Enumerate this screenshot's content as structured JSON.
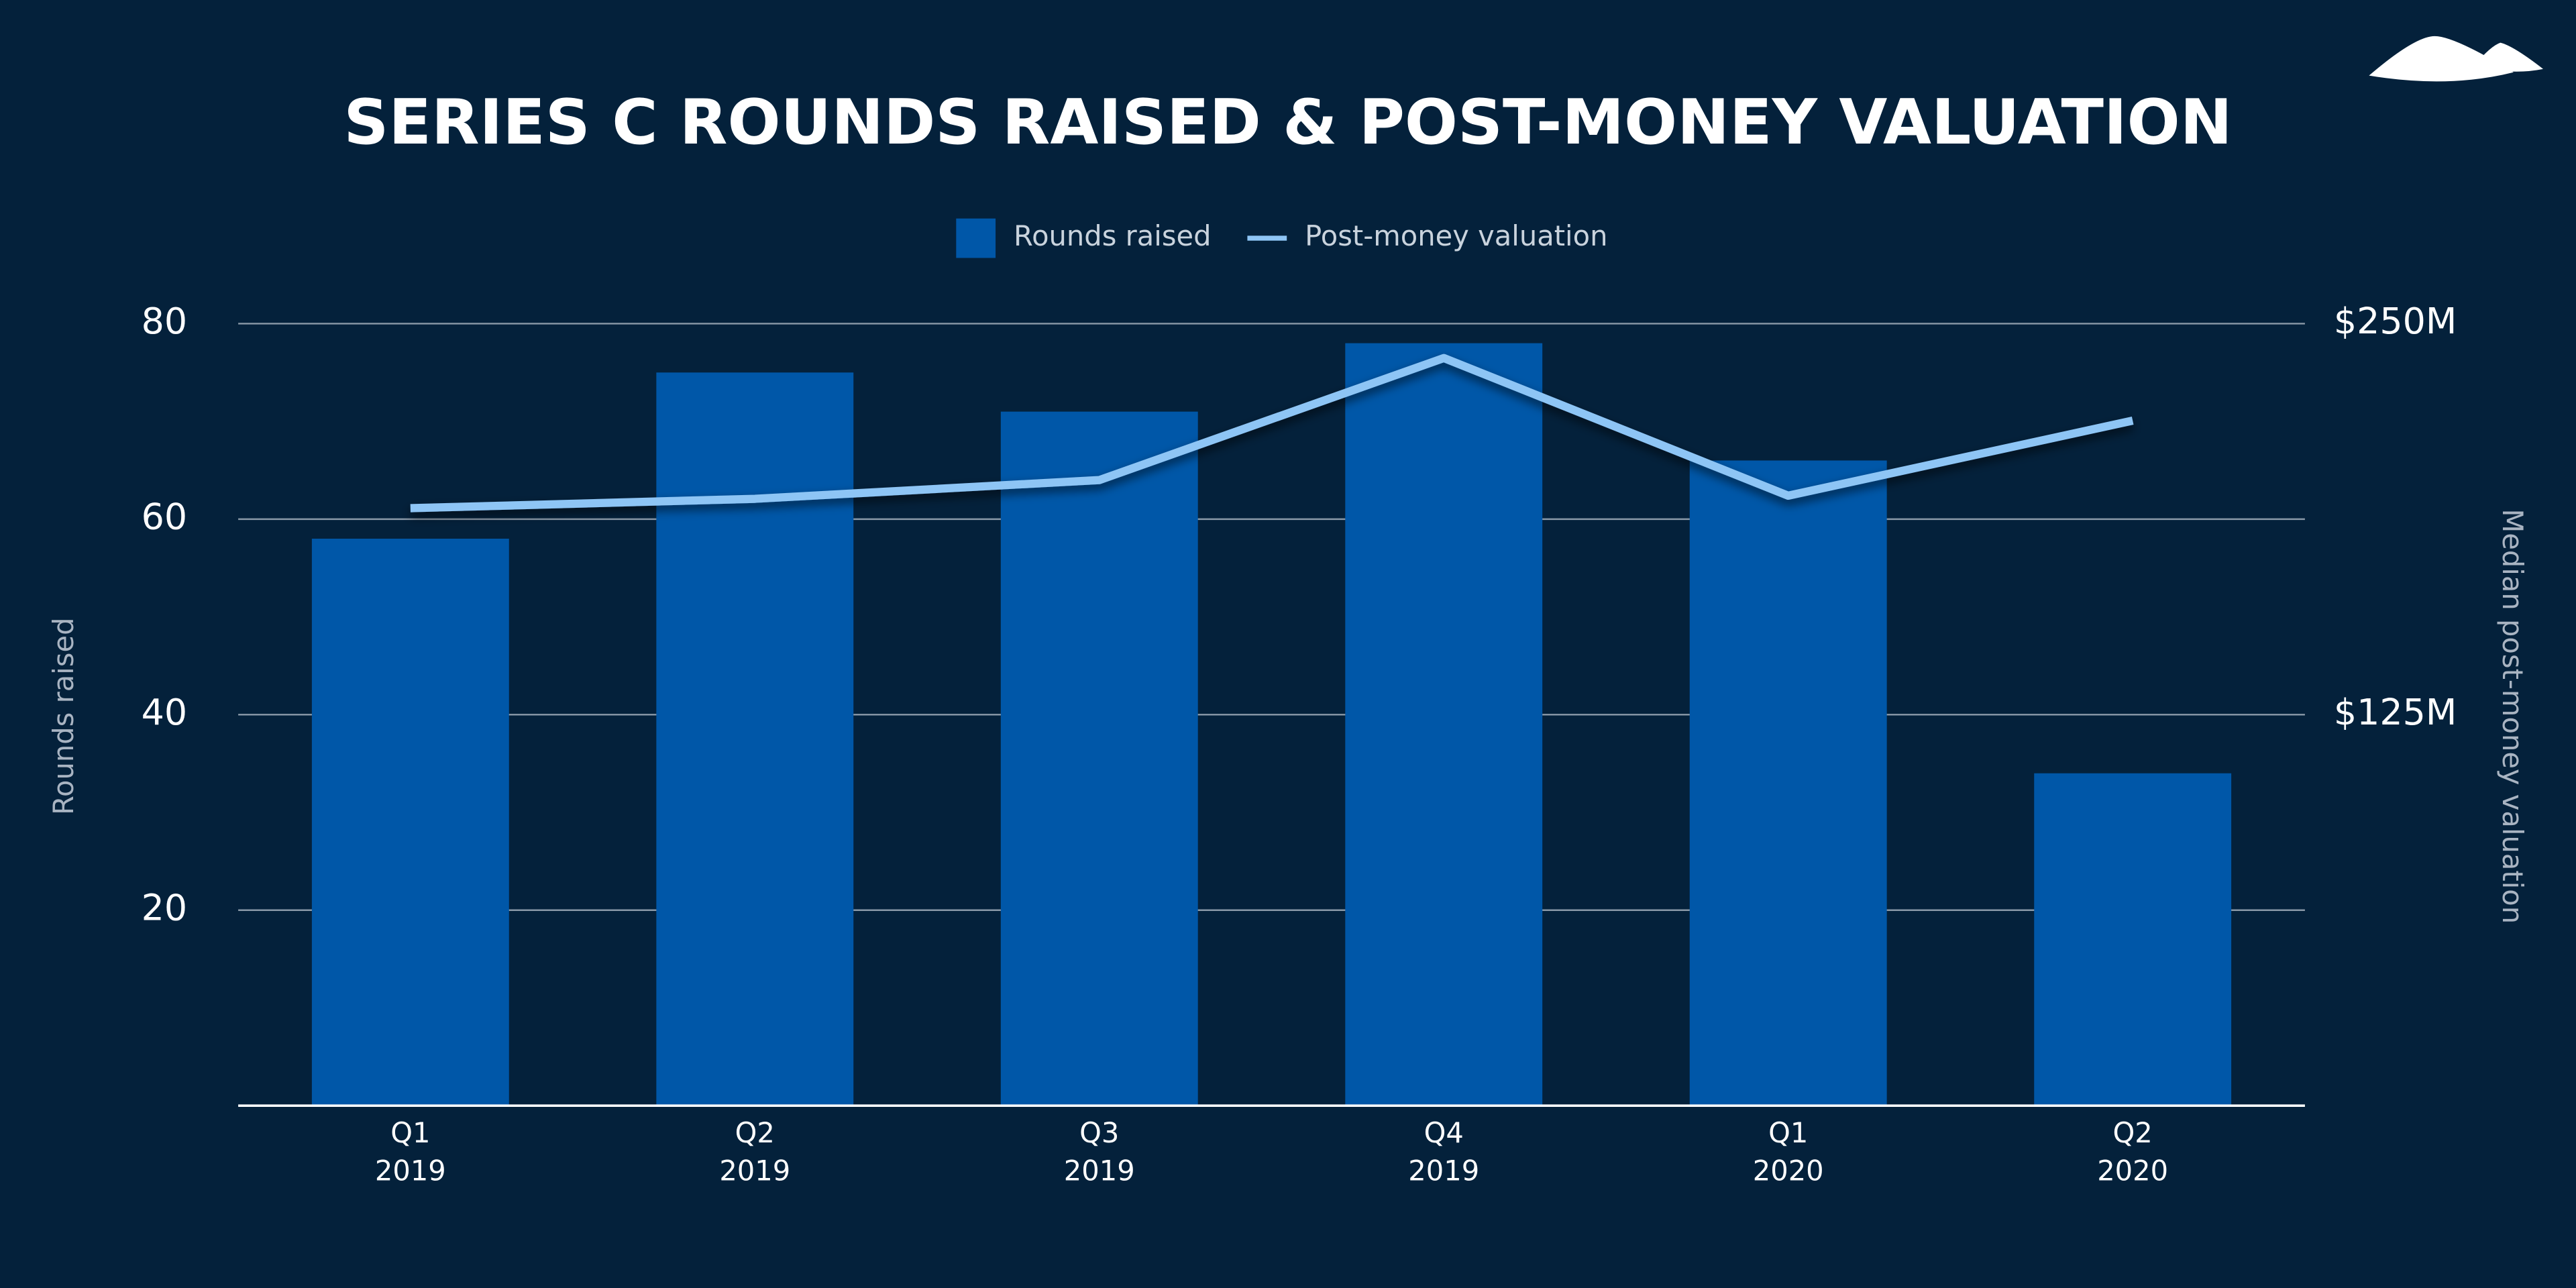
{
  "chart_data": {
    "type": "bar",
    "title": "SERIES C ROUNDS RAISED & POST-MONEY VALUATION",
    "categories": [
      [
        "Q1",
        "2019"
      ],
      [
        "Q2",
        "2019"
      ],
      [
        "Q3",
        "2019"
      ],
      [
        "Q4",
        "2019"
      ],
      [
        "Q1",
        "2020"
      ],
      [
        "Q2",
        "2020"
      ]
    ],
    "series": [
      {
        "name": "Rounds raised",
        "color": "#0057a8",
        "values": [
          58,
          75,
          71,
          78,
          66,
          34
        ]
      },
      {
        "name": "Post-money valuation",
        "color": "#8ec5f5",
        "axis": "y2",
        "type": "line",
        "values": [
          191,
          194,
          200,
          239,
          195,
          219
        ]
      }
    ],
    "ylabel": "Rounds raised",
    "y2label": "Median post-money valuation",
    "ylim": [
      0,
      80
    ],
    "yticks": [
      20,
      40,
      60,
      80
    ],
    "y2lim": [
      0,
      250
    ],
    "y2ticks": [
      {
        "value": 125,
        "label": "$125M"
      },
      {
        "value": 250,
        "label": "$250M"
      }
    ],
    "grid": true
  }
}
